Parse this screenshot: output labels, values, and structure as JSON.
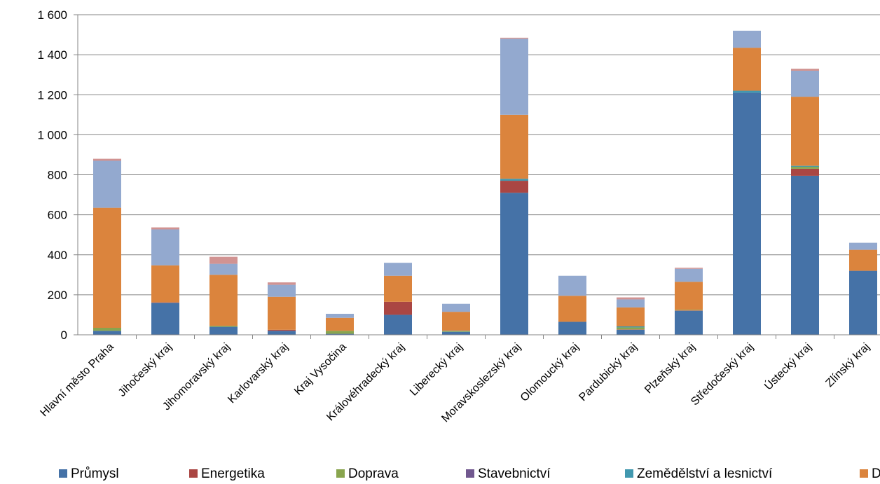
{
  "chart_data": {
    "type": "bar",
    "stacked": true,
    "categories": [
      "Hlavní město Praha",
      "Jihočeský kraj",
      "Jihomoravský kraj",
      "Karlovarský kraj",
      "Kraj Vysočina",
      "Královéhradecký kraj",
      "Liberecký kraj",
      "Moravskoslezský kraj",
      "Olomoucký kraj",
      "Pardubický kraj",
      "Plzeňský kraj",
      "Středočeský kraj",
      "Ústecký kraj",
      "Zlínský kraj"
    ],
    "ylim": [
      0,
      1600
    ],
    "yticks": [
      "0",
      "200",
      "400",
      "600",
      "800",
      "1 000",
      "1 200",
      "1 400",
      "1 600"
    ],
    "grid": true,
    "legend_position": "bottom",
    "series": [
      {
        "name": "Průmysl",
        "color": "#4572a7",
        "values": [
          20,
          160,
          40,
          20,
          5,
          100,
          15,
          710,
          65,
          25,
          120,
          1210,
          795,
          320
        ]
      },
      {
        "name": "Energetika",
        "color": "#aa4643",
        "values": [
          0,
          2,
          0,
          5,
          0,
          65,
          0,
          60,
          0,
          2,
          2,
          0,
          35,
          0
        ]
      },
      {
        "name": "Doprava",
        "color": "#89a54e",
        "values": [
          15,
          0,
          5,
          0,
          15,
          0,
          3,
          0,
          0,
          10,
          3,
          0,
          10,
          0
        ]
      },
      {
        "name": "Stavebnictví",
        "color": "#71588f",
        "values": [
          0,
          0,
          0,
          0,
          0,
          0,
          0,
          0,
          0,
          0,
          0,
          0,
          0,
          0
        ]
      },
      {
        "name": "Zemědělství a lesnictví",
        "color": "#4198af",
        "values": [
          0,
          0,
          0,
          0,
          0,
          0,
          2,
          10,
          0,
          5,
          0,
          10,
          5,
          0
        ]
      },
      {
        "name": "D",
        "color": "#db843d",
        "values": [
          600,
          185,
          255,
          165,
          65,
          130,
          95,
          320,
          130,
          95,
          140,
          215,
          345,
          105
        ]
      },
      {
        "name": "",
        "color": "#93a9cf",
        "values": [
          235,
          180,
          55,
          60,
          20,
          65,
          40,
          380,
          100,
          40,
          65,
          85,
          130,
          35
        ]
      },
      {
        "name": "",
        "color": "#d19392",
        "values": [
          10,
          10,
          35,
          12,
          0,
          0,
          0,
          5,
          0,
          10,
          5,
          0,
          10,
          0
        ]
      }
    ]
  }
}
